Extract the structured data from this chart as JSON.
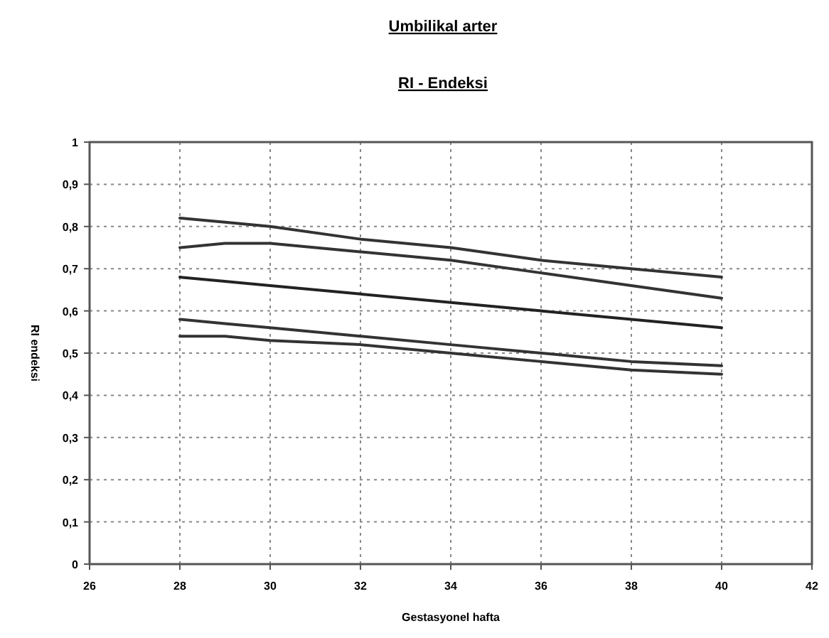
{
  "chart_data": {
    "type": "line",
    "title": "Umbilikal arter",
    "subtitle": "RI - Endeksi",
    "xlabel": "Gestasyonel hafta",
    "ylabel": "RI endeksi",
    "xlim": [
      26,
      42
    ],
    "xticks": [
      26,
      28,
      30,
      32,
      34,
      36,
      38,
      40,
      42
    ],
    "ylim": [
      0,
      1
    ],
    "yticks": [
      {
        "value": 0,
        "label": "0"
      },
      {
        "value": 0.1,
        "label": "0,1"
      },
      {
        "value": 0.2,
        "label": "0,2"
      },
      {
        "value": 0.3,
        "label": "0,3"
      },
      {
        "value": 0.4,
        "label": "0,4"
      },
      {
        "value": 0.5,
        "label": "0,5"
      },
      {
        "value": 0.6,
        "label": "0,6"
      },
      {
        "value": 0.7,
        "label": "0,7"
      },
      {
        "value": 0.8,
        "label": "0,8"
      },
      {
        "value": 0.9,
        "label": "0,9"
      },
      {
        "value": 1,
        "label": "1"
      }
    ],
    "grid": true,
    "line_style": "solid",
    "marker": "none",
    "x": [
      28,
      29,
      30,
      32,
      34,
      36,
      38,
      40
    ],
    "series": [
      {
        "color": "#333333",
        "values": [
          0.82,
          0.81,
          0.8,
          0.77,
          0.75,
          0.72,
          0.7,
          0.68
        ]
      },
      {
        "color": "#333333",
        "values": [
          0.75,
          0.76,
          0.76,
          0.74,
          0.72,
          0.69,
          0.66,
          0.63
        ]
      },
      {
        "color": "#222222",
        "values": [
          0.68,
          0.67,
          0.66,
          0.64,
          0.62,
          0.6,
          0.58,
          0.56
        ]
      },
      {
        "color": "#333333",
        "values": [
          0.58,
          0.57,
          0.56,
          0.54,
          0.52,
          0.5,
          0.48,
          0.47
        ]
      },
      {
        "color": "#333333",
        "values": [
          0.54,
          0.54,
          0.53,
          0.52,
          0.5,
          0.48,
          0.46,
          0.45
        ]
      }
    ]
  }
}
